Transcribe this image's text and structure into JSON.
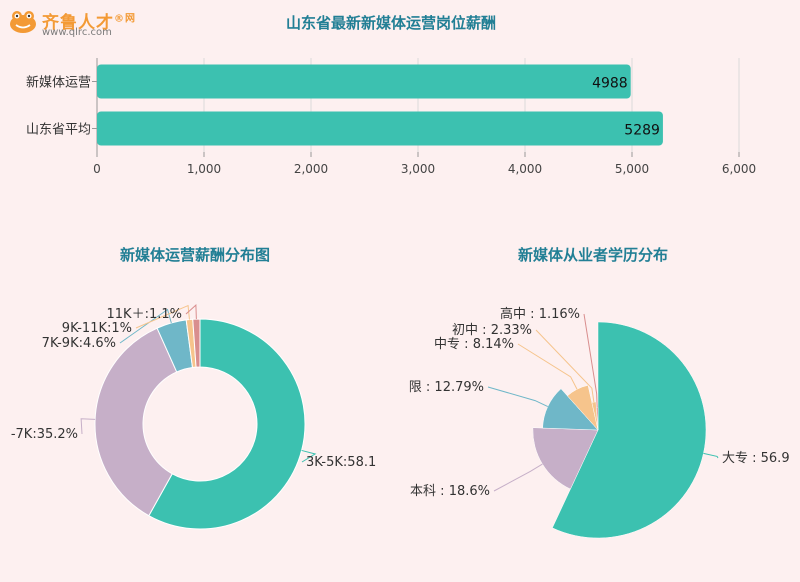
{
  "brand": {
    "name": "齐鲁人才",
    "mark": "®网",
    "url": "www.qlrc.com"
  },
  "colors": {
    "teal": "#3cc1b0",
    "mauve": "#c6afc8",
    "blue": "#6fb7c8",
    "peach": "#f6c48c",
    "rose": "#d98e8e",
    "grid": "#dadada"
  },
  "chart_data": [
    {
      "type": "bar",
      "title": "山东省最新新媒体运营岗位薪酬",
      "categories": [
        "新媒体运营",
        "山东省平均"
      ],
      "values": [
        4988,
        5289
      ],
      "value_labels": [
        "4988",
        "5289"
      ],
      "xlim": [
        0,
        6000
      ],
      "xticks": [
        0,
        1000,
        2000,
        3000,
        4000,
        5000,
        6000
      ],
      "xtick_labels": [
        "0",
        "1,000",
        "2,000",
        "3,000",
        "4,000",
        "5,000",
        "6,000"
      ],
      "grid": true,
      "color": "#3cc1b0"
    },
    {
      "type": "pie",
      "variant": "donut",
      "title": "新媒体运营薪酬分布图",
      "slices": [
        {
          "label": "3K-5K:58.1",
          "value": 58.1,
          "color": "#3cc1b0"
        },
        {
          "label": "-7K:35.2%",
          "value": 35.2,
          "color": "#c6afc8"
        },
        {
          "label": "7K-9K:4.6%",
          "value": 4.6,
          "color": "#6fb7c8"
        },
        {
          "label": "9K-11K:1%",
          "value": 1.0,
          "color": "#f6c48c"
        },
        {
          "label": "11K＋:1.1%",
          "value": 1.1,
          "color": "#d98e8e"
        }
      ]
    },
    {
      "type": "pie",
      "variant": "rose",
      "title": "新媒体从业者学历分布",
      "slices": [
        {
          "label": "大专 : 56.9",
          "value": 56.9,
          "color": "#3cc1b0"
        },
        {
          "label": "本科 : 18.6%",
          "value": 18.6,
          "color": "#c6afc8"
        },
        {
          "label": "限 : 12.79%",
          "value": 12.79,
          "color": "#6fb7c8"
        },
        {
          "label": "中专 : 8.14%",
          "value": 8.14,
          "color": "#f6c48c"
        },
        {
          "label": "初中 : 2.33%",
          "value": 2.33,
          "color": "#f6c48c"
        },
        {
          "label": "高中 : 1.16%",
          "value": 1.16,
          "color": "#d98e8e"
        }
      ]
    }
  ]
}
